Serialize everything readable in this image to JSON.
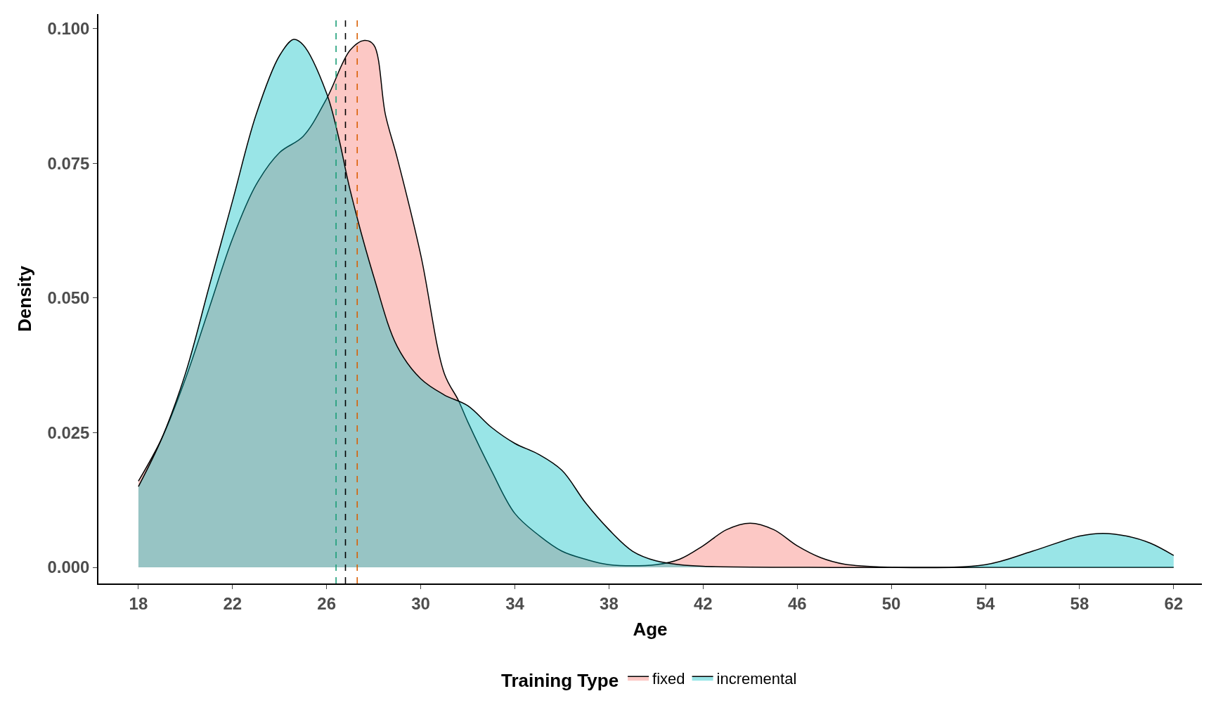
{
  "chart_data": {
    "type": "area",
    "xlabel": "Age",
    "ylabel": "Density",
    "legend_title": "Training Type",
    "legend": "bottom",
    "series": [
      {
        "name": "fixed",
        "color": "#f8766d",
        "x": [
          18,
          19,
          20,
          21,
          22,
          23,
          24,
          25,
          26,
          27,
          27.6,
          28,
          28.5,
          29,
          30,
          31,
          31.6,
          32,
          33,
          34,
          35,
          36,
          37,
          38,
          40,
          41,
          42,
          43,
          44,
          45,
          46,
          47,
          48,
          50,
          54,
          58,
          62
        ],
        "values": [
          0.016,
          0.024,
          0.035,
          0.048,
          0.061,
          0.071,
          0.077,
          0.08,
          0.087,
          0.096,
          0.0978,
          0.097,
          0.084,
          0.076,
          0.058,
          0.036,
          0.031,
          0.027,
          0.018,
          0.01,
          0.006,
          0.003,
          0.0015,
          0.0005,
          0.0005,
          0.0015,
          0.004,
          0.007,
          0.0082,
          0.007,
          0.004,
          0.0018,
          0.0006,
          0,
          0,
          0,
          0
        ]
      },
      {
        "name": "incremental",
        "color": "#00bfc4",
        "x": [
          18,
          19,
          20,
          21,
          22,
          23,
          24,
          24.6,
          25,
          26,
          26.5,
          27,
          28,
          29,
          30,
          31,
          32,
          33,
          34,
          35,
          36,
          37,
          38,
          39,
          40,
          41,
          42,
          46,
          50,
          54,
          56,
          58,
          59,
          60,
          61,
          62
        ],
        "values": [
          0.015,
          0.024,
          0.036,
          0.052,
          0.068,
          0.084,
          0.095,
          0.098,
          0.097,
          0.088,
          0.08,
          0.07,
          0.054,
          0.041,
          0.035,
          0.032,
          0.03,
          0.026,
          0.023,
          0.021,
          0.018,
          0.012,
          0.007,
          0.003,
          0.0012,
          0.0005,
          0.0002,
          0,
          0,
          0.0005,
          0.003,
          0.0058,
          0.0063,
          0.0058,
          0.0045,
          0.0022
        ]
      }
    ],
    "ref_lines": [
      {
        "axis": "x",
        "value": 26.4,
        "color": "#1b9e77",
        "line_style": "dashed"
      },
      {
        "axis": "x",
        "value": 26.8,
        "color": "#000000",
        "line_style": "dashed"
      },
      {
        "axis": "x",
        "value": 27.3,
        "color": "#d95f02",
        "line_style": "dashed"
      }
    ],
    "xlim": [
      16.3,
      63.2
    ],
    "xticks": [
      18,
      22,
      26,
      30,
      34,
      38,
      42,
      46,
      50,
      54,
      58,
      62
    ],
    "ylim": [
      -0.003,
      0.1027
    ],
    "yticks": [
      {
        "value": 0,
        "label": "0.000"
      },
      {
        "value": 0.025,
        "label": "0.025"
      },
      {
        "value": 0.05,
        "label": "0.050"
      },
      {
        "value": 0.075,
        "label": "0.075"
      },
      {
        "value": 0.1,
        "label": "0.100"
      }
    ]
  }
}
